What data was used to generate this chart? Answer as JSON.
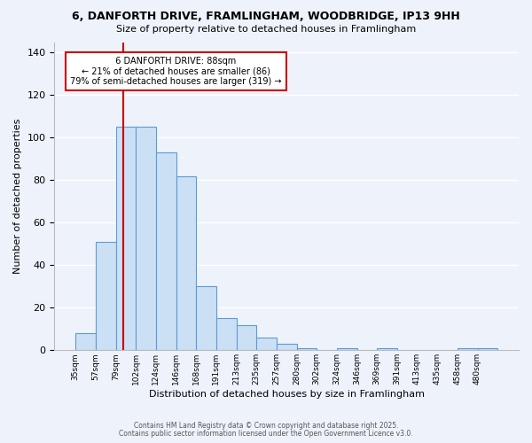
{
  "title1": "6, DANFORTH DRIVE, FRAMLINGHAM, WOODBRIDGE, IP13 9HH",
  "title2": "Size of property relative to detached houses in Framlingham",
  "xlabel": "Distribution of detached houses by size in Framlingham",
  "ylabel": "Number of detached properties",
  "bin_labels": [
    "35sqm",
    "57sqm",
    "79sqm",
    "102sqm",
    "124sqm",
    "146sqm",
    "168sqm",
    "191sqm",
    "213sqm",
    "235sqm",
    "257sqm",
    "280sqm",
    "302sqm",
    "324sqm",
    "346sqm",
    "369sqm",
    "391sqm",
    "413sqm",
    "435sqm",
    "458sqm",
    "480sqm"
  ],
  "bar_values": [
    8,
    51,
    105,
    105,
    93,
    82,
    30,
    15,
    12,
    6,
    3,
    1,
    0,
    1,
    0,
    1,
    0,
    0,
    0,
    1,
    1
  ],
  "bar_color": "#cce0f5",
  "bar_edge_color": "#5b9bd5",
  "background_color": "#eef3fb",
  "grid_color": "#ffffff",
  "annotation_title": "6 DANFORTH DRIVE: 88sqm",
  "annotation_line1": "← 21% of detached houses are smaller (86)",
  "annotation_line2": "79% of semi-detached houses are larger (319) →",
  "annotation_box_color": "#ffffff",
  "annotation_border_color": "#cc0000",
  "ylim": [
    0,
    145
  ],
  "yticks": [
    0,
    20,
    40,
    60,
    80,
    100,
    120,
    140
  ],
  "footer1": "Contains HM Land Registry data © Crown copyright and database right 2025.",
  "footer2": "Contains public sector information licensed under the Open Government Licence v3.0."
}
